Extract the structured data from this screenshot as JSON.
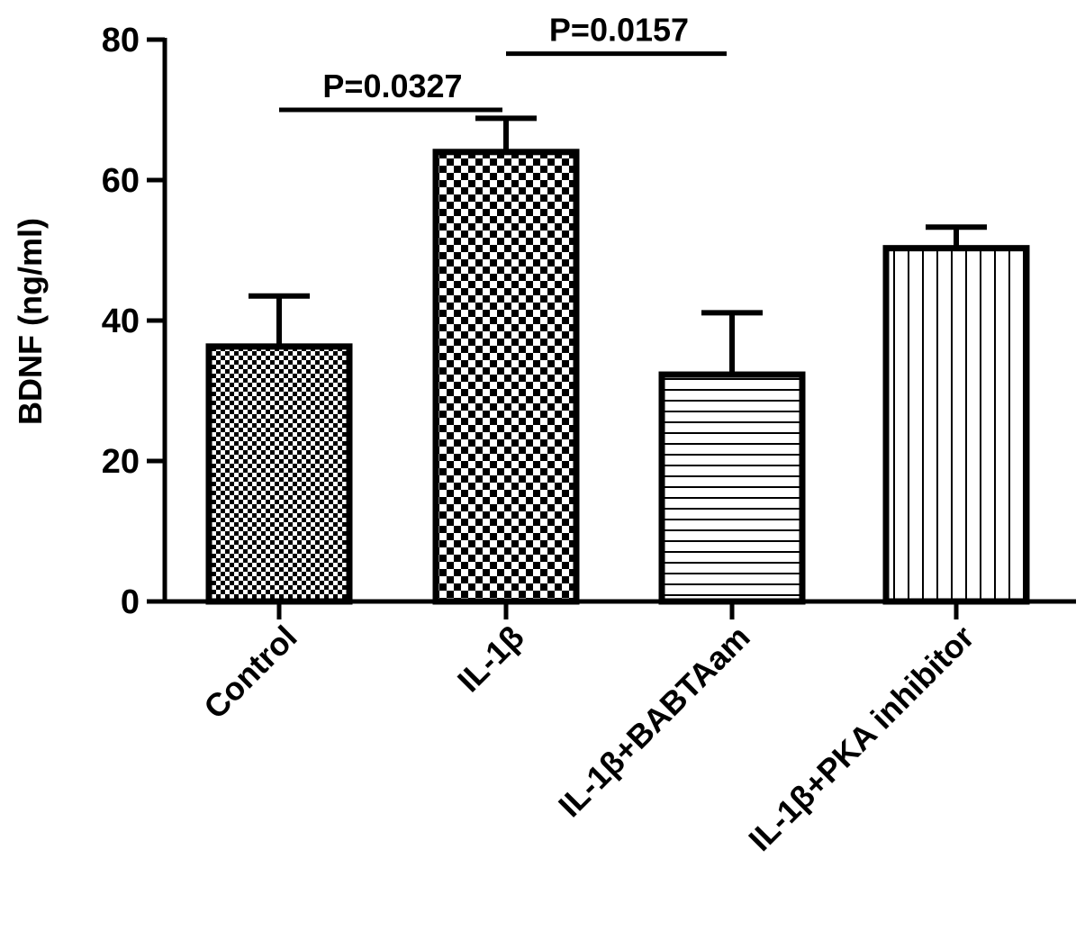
{
  "chart_data": {
    "type": "bar",
    "title": "",
    "xlabel": "",
    "ylabel": "BDNF (ng/ml)",
    "ylim": [
      0,
      80
    ],
    "yticks": [
      "0",
      "20",
      "40",
      "60",
      "80"
    ],
    "grid": false,
    "categories": [
      "Control",
      "IL-1β",
      "IL-1β+BABTAam",
      "IL-1β+PKA inhibitor"
    ],
    "values": [
      36.3,
      64.0,
      32.3,
      50.3
    ],
    "errors": [
      7.2,
      4.8,
      8.8,
      3.0
    ],
    "patterns": [
      "fine-checker",
      "checker",
      "horizontal-lines",
      "vertical-lines"
    ],
    "comparisons": [
      {
        "from": "Control",
        "to": "IL-1β",
        "label": "P=0.0327",
        "y": 70.0
      },
      {
        "from": "IL-1β",
        "to": "IL-1β+BABTAam",
        "label": "P=0.0157",
        "y": 78.0
      }
    ]
  },
  "colors": {
    "ink": "#000000",
    "background": "#ffffff"
  }
}
